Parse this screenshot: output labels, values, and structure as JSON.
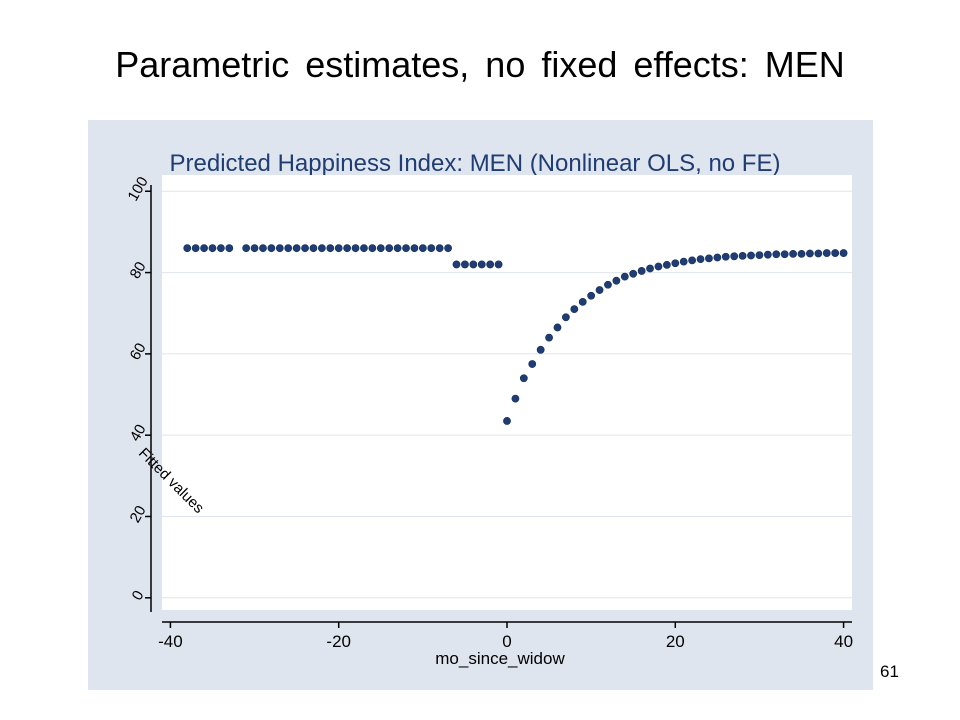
{
  "slide": {
    "title": "Parametric estimates, no fixed effects: MEN",
    "page_number": "61"
  },
  "colors": {
    "panel_background": "#dfe5ee",
    "plot_background": "#ffffff",
    "chart_title": "#1f3d73",
    "marker": "#1f3d73",
    "gridline": "#dfe5ee"
  },
  "chart_data": {
    "type": "scatter",
    "title": "Predicted Happiness Index: MEN (Nonlinear OLS, no FE)",
    "xlabel": "mo_since_widow",
    "ylabel": "Fitted values",
    "xlim": [
      -41,
      41
    ],
    "ylim": [
      -3,
      104
    ],
    "xticks": [
      -40,
      -20,
      0,
      20,
      40
    ],
    "yticks": [
      0,
      20,
      40,
      60,
      80,
      100
    ],
    "grid": true,
    "legend": "none",
    "series": [
      {
        "x": [
          -38,
          -37,
          -36,
          -35,
          -34,
          -33,
          -31,
          -30,
          -29,
          -28,
          -27,
          -26,
          -25,
          -24,
          -23,
          -22,
          -21,
          -20,
          -19,
          -18,
          -17,
          -16,
          -15,
          -14,
          -13,
          -12,
          -11,
          -10,
          -9,
          -8,
          -7,
          -6,
          -5,
          -4,
          -3,
          -2,
          -1,
          0,
          1,
          2,
          3,
          4,
          5,
          6,
          7,
          8,
          9,
          10,
          11,
          12,
          13,
          14,
          15,
          16,
          17,
          18,
          19,
          20,
          21,
          22,
          23,
          24,
          25,
          26,
          27,
          28,
          29,
          30,
          31,
          32,
          33,
          34,
          35,
          36,
          37,
          38,
          39,
          40
        ],
        "y": [
          86,
          86,
          86,
          86,
          86,
          86,
          86,
          86,
          86,
          86,
          86,
          86,
          86,
          86,
          86,
          86,
          86,
          86,
          86,
          86,
          86,
          86,
          86,
          86,
          86,
          86,
          86,
          86,
          86,
          86,
          86,
          82,
          82,
          82,
          82,
          82,
          82,
          43.5,
          49,
          54,
          57.5,
          61,
          64,
          66.5,
          69,
          71,
          72.8,
          74.3,
          75.7,
          77,
          78,
          79,
          79.7,
          80.4,
          81,
          81.5,
          81.9,
          82.3,
          82.7,
          83,
          83.3,
          83.5,
          83.7,
          83.9,
          84,
          84.1,
          84.2,
          84.3,
          84.4,
          84.5,
          84.5,
          84.6,
          84.6,
          84.7,
          84.7,
          84.8,
          84.8,
          84.8
        ]
      }
    ]
  }
}
